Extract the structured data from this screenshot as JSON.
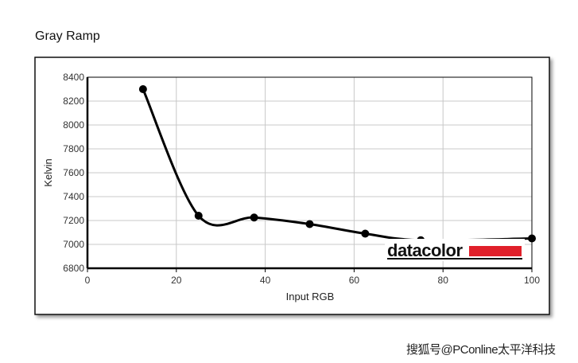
{
  "chart_data": {
    "type": "line",
    "title": "Gray Ramp",
    "xlabel": "Input RGB",
    "ylabel": "Kelvin",
    "xlim": [
      0,
      100
    ],
    "ylim": [
      6800,
      8400
    ],
    "xticks": [
      "0",
      "20",
      "40",
      "60",
      "80",
      "100"
    ],
    "yticks": [
      "6800",
      "7000",
      "7200",
      "7400",
      "7600",
      "7800",
      "8000",
      "8200",
      "8400"
    ],
    "grid": true,
    "series": [
      {
        "x": [
          12.5,
          25,
          37.5,
          50,
          62.5,
          75,
          100
        ],
        "y": [
          8300,
          7240,
          7225,
          7170,
          7090,
          7035,
          7050
        ],
        "color": "#000000"
      }
    ]
  },
  "logo": {
    "text": "datacolor",
    "accent_color": "#e0202a"
  },
  "watermark": "搜狐号@PConline太平洋科技"
}
